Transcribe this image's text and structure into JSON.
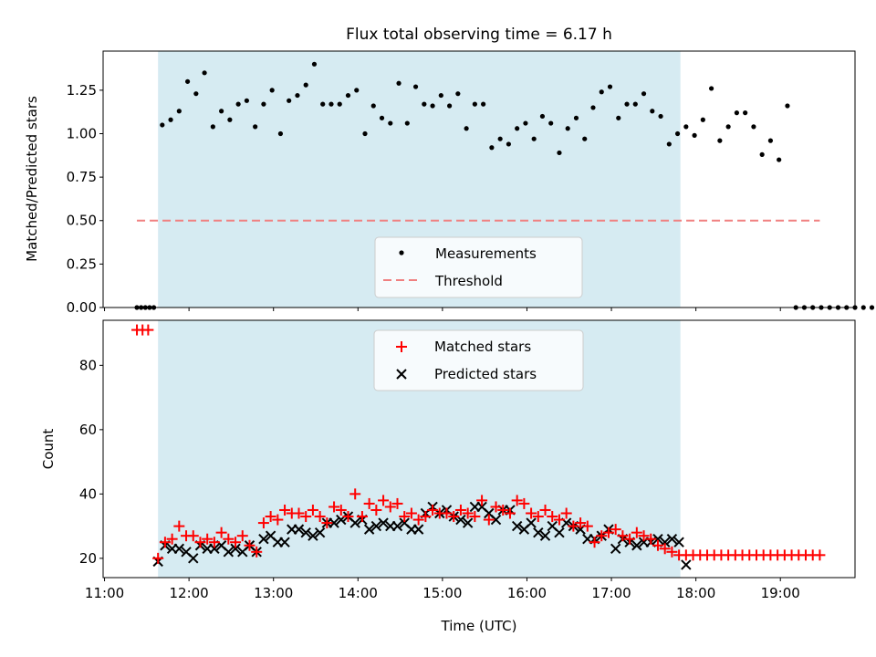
{
  "figure": {
    "title": "Flux total observing time = 6.17 h"
  },
  "chart_data": [
    {
      "type": "scatter",
      "ylabel": "Matched/Predicted stars",
      "ylim": [
        0,
        1.475
      ],
      "yticks": [
        0.0,
        0.25,
        0.5,
        0.75,
        1.0,
        1.25
      ],
      "ytick_labels": [
        "0.00",
        "0.25",
        "0.50",
        "0.75",
        "1.00",
        "1.25"
      ],
      "observing_window": [
        "11:38",
        "17:49"
      ],
      "colors": {
        "points": "#000000",
        "threshold": "#f08080",
        "window": "#add8e6"
      },
      "series": [
        {
          "name": "Measurements",
          "x": [
            "11:23",
            "11:26",
            "11:29",
            "11:32",
            "11:35",
            "11:41",
            "11:47",
            "11:53",
            "11:59",
            "12:05",
            "12:11",
            "12:17",
            "12:23",
            "12:29",
            "12:35",
            "12:41",
            "12:47",
            "12:53",
            "12:59",
            "13:05",
            "13:11",
            "13:17",
            "13:23",
            "13:29",
            "13:35",
            "13:41",
            "13:47",
            "13:53",
            "13:59",
            "14:05",
            "14:11",
            "14:17",
            "14:23",
            "14:29",
            "14:35",
            "14:41",
            "14:47",
            "14:53",
            "14:59",
            "15:05",
            "15:11",
            "15:17",
            "15:23",
            "15:29",
            "15:35",
            "15:41",
            "15:47",
            "15:53",
            "15:59",
            "16:05",
            "16:11",
            "16:17",
            "16:23",
            "16:29",
            "16:35",
            "16:41",
            "16:47",
            "16:53",
            "16:59",
            "17:05",
            "17:11",
            "17:17",
            "17:23",
            "17:29",
            "17:35",
            "17:41",
            "17:47",
            "17:53",
            "17:59",
            "18:05",
            "18:11",
            "18:17",
            "18:23",
            "18:29",
            "18:35",
            "18:41",
            "18:47",
            "18:53",
            "18:59",
            "19:05",
            "19:11",
            "19:17",
            "19:23",
            "19:29",
            "19:35",
            "19:41",
            "19:47",
            "19:53",
            "19:59",
            "20:05"
          ],
          "y": [
            0,
            0,
            0,
            0,
            0,
            1.05,
            1.08,
            1.13,
            1.3,
            1.23,
            1.35,
            1.04,
            1.13,
            1.08,
            1.17,
            1.19,
            1.04,
            1.17,
            1.25,
            1.0,
            1.19,
            1.22,
            1.28,
            1.4,
            1.17,
            1.17,
            1.17,
            1.22,
            1.25,
            1.0,
            1.16,
            1.09,
            1.06,
            1.29,
            1.06,
            1.27,
            1.17,
            1.16,
            1.22,
            1.16,
            1.23,
            1.03,
            1.17,
            1.17,
            0.92,
            0.97,
            0.94,
            1.03,
            1.06,
            0.97,
            1.1,
            1.06,
            0.89,
            1.03,
            1.09,
            0.97,
            1.15,
            1.24,
            1.27,
            1.09,
            1.17,
            1.17,
            1.23,
            1.13,
            1.1,
            0.94,
            1.0,
            1.04,
            0.99,
            1.08,
            1.26,
            0.96,
            1.04,
            1.12,
            1.12,
            1.04,
            0.88,
            0.96,
            0.85,
            1.16,
            0,
            0,
            0,
            0,
            0,
            0,
            0,
            0,
            0,
            0
          ]
        },
        {
          "name": "Threshold",
          "x": [
            "11:23",
            "19:28"
          ],
          "y": [
            0.5,
            0.5
          ]
        }
      ],
      "legend_position": "bottom-center"
    },
    {
      "type": "scatter",
      "xlabel": "Time (UTC)",
      "ylabel": "Count",
      "ylim": [
        14,
        94
      ],
      "yticks": [
        20,
        40,
        60,
        80
      ],
      "ytick_labels": [
        "20",
        "40",
        "60",
        "80"
      ],
      "xlim": [
        "10:59",
        "19:53"
      ],
      "xticks": [
        "11:00",
        "12:00",
        "13:00",
        "14:00",
        "15:00",
        "16:00",
        "17:00",
        "18:00",
        "19:00"
      ],
      "xtick_labels": [
        "11:00",
        "12:00",
        "13:00",
        "14:00",
        "15:00",
        "16:00",
        "17:00",
        "18:00",
        "19:00"
      ],
      "observing_window": [
        "11:38",
        "17:49"
      ],
      "colors": {
        "matched": "#ff0000",
        "predicted": "#000000",
        "window": "#add8e6"
      },
      "series": [
        {
          "name": "Matched stars",
          "x": [
            "11:23",
            "11:27",
            "11:31",
            "11:38",
            "11:43",
            "11:48",
            "11:53",
            "11:58",
            "12:03",
            "12:08",
            "12:13",
            "12:18",
            "12:23",
            "12:28",
            "12:33",
            "12:38",
            "12:43",
            "12:48",
            "12:53",
            "12:58",
            "13:03",
            "13:08",
            "13:13",
            "13:18",
            "13:23",
            "13:28",
            "13:33",
            "13:38",
            "13:43",
            "13:48",
            "13:53",
            "13:58",
            "14:03",
            "14:08",
            "14:13",
            "14:18",
            "14:23",
            "14:28",
            "14:33",
            "14:38",
            "14:43",
            "14:48",
            "14:53",
            "14:58",
            "15:03",
            "15:08",
            "15:13",
            "15:18",
            "15:23",
            "15:28",
            "15:33",
            "15:38",
            "15:43",
            "15:48",
            "15:53",
            "15:58",
            "16:03",
            "16:08",
            "16:13",
            "16:18",
            "16:23",
            "16:28",
            "16:33",
            "16:38",
            "16:43",
            "16:48",
            "16:53",
            "16:58",
            "17:03",
            "17:08",
            "17:13",
            "17:18",
            "17:23",
            "17:28",
            "17:33",
            "17:38",
            "17:43",
            "17:48",
            "17:53",
            "17:58",
            "18:03",
            "18:08",
            "18:13",
            "18:18",
            "18:23",
            "18:28",
            "18:33",
            "18:38",
            "18:43",
            "18:48",
            "18:53",
            "18:58",
            "19:03",
            "19:08",
            "19:13",
            "19:18",
            "19:23",
            "19:28"
          ],
          "y": [
            91,
            91,
            91,
            20,
            25,
            26,
            30,
            27,
            27,
            25,
            26,
            25,
            28,
            26,
            25,
            27,
            24,
            22,
            31,
            33,
            32,
            35,
            34,
            34,
            33,
            35,
            33,
            31,
            36,
            35,
            33,
            40,
            33,
            37,
            35,
            38,
            36,
            37,
            33,
            34,
            32,
            33,
            35,
            34,
            34,
            33,
            35,
            34,
            33,
            38,
            32,
            36,
            35,
            34,
            38,
            37,
            34,
            33,
            35,
            33,
            32,
            34,
            30,
            31,
            30,
            25,
            27,
            28,
            29,
            27,
            26,
            28,
            27,
            26,
            24,
            23,
            22,
            21,
            21,
            21,
            21,
            21,
            21,
            21,
            21,
            21,
            21,
            21,
            21,
            21,
            21,
            21,
            21,
            21,
            21,
            21,
            21,
            21
          ]
        },
        {
          "name": "Predicted stars",
          "x": [
            "11:38",
            "11:43",
            "11:48",
            "11:53",
            "11:58",
            "12:03",
            "12:08",
            "12:13",
            "12:18",
            "12:23",
            "12:28",
            "12:33",
            "12:38",
            "12:43",
            "12:48",
            "12:53",
            "12:58",
            "13:03",
            "13:08",
            "13:13",
            "13:18",
            "13:23",
            "13:28",
            "13:33",
            "13:38",
            "13:43",
            "13:48",
            "13:53",
            "13:58",
            "14:03",
            "14:08",
            "14:13",
            "14:18",
            "14:23",
            "14:28",
            "14:33",
            "14:38",
            "14:43",
            "14:48",
            "14:53",
            "14:58",
            "15:03",
            "15:08",
            "15:13",
            "15:18",
            "15:23",
            "15:28",
            "15:33",
            "15:38",
            "15:43",
            "15:48",
            "15:53",
            "15:58",
            "16:03",
            "16:08",
            "16:13",
            "16:18",
            "16:23",
            "16:28",
            "16:33",
            "16:38",
            "16:43",
            "16:48",
            "16:53",
            "16:58",
            "17:03",
            "17:08",
            "17:13",
            "17:18",
            "17:23",
            "17:28",
            "17:33",
            "17:38",
            "17:43",
            "17:48",
            "17:53"
          ],
          "y": [
            19,
            24,
            23,
            23,
            22,
            20,
            24,
            23,
            23,
            24,
            22,
            23,
            22,
            24,
            22,
            26,
            27,
            25,
            25,
            29,
            29,
            28,
            27,
            28,
            31,
            31,
            32,
            33,
            31,
            32,
            29,
            30,
            31,
            30,
            30,
            31,
            29,
            29,
            34,
            36,
            34,
            35,
            33,
            32,
            31,
            36,
            36,
            34,
            32,
            35,
            35,
            30,
            29,
            31,
            28,
            27,
            30,
            28,
            31,
            30,
            29,
            26,
            26,
            27,
            29,
            23,
            26,
            25,
            24,
            25,
            25,
            26,
            25,
            26,
            25,
            18
          ]
        }
      ],
      "legend_position": "top-center"
    }
  ]
}
